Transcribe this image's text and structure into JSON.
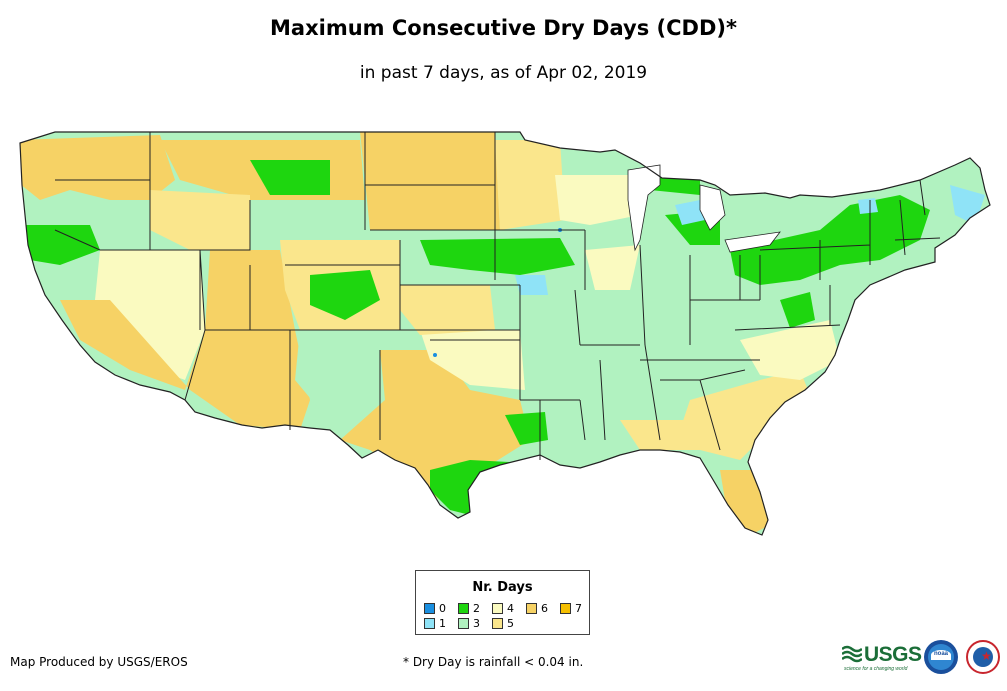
{
  "title": "Maximum Consecutive Dry Days (CDD)*",
  "subtitle": "in past 7 days, as of Apr 02, 2019",
  "legend": {
    "title": "Nr. Days",
    "items": [
      {
        "label": "0",
        "color": "#1a8fe0"
      },
      {
        "label": "1",
        "color": "#8fe3f7"
      },
      {
        "label": "2",
        "color": "#1ed60f"
      },
      {
        "label": "3",
        "color": "#b1f2c0"
      },
      {
        "label": "4",
        "color": "#fafac0"
      },
      {
        "label": "5",
        "color": "#fae68c"
      },
      {
        "label": "6",
        "color": "#f6d265"
      },
      {
        "label": "7",
        "color": "#f5bf00"
      }
    ]
  },
  "footer": {
    "producer": "Map Produced by USGS/EROS",
    "note": "* Dry Day is rainfall < 0.04 in."
  },
  "logos": {
    "usgs": "USGS",
    "usgs_tagline": "science for a changing world",
    "noaa": "noaa"
  },
  "colors": {
    "border": "#222222",
    "background": "#ffffff"
  }
}
